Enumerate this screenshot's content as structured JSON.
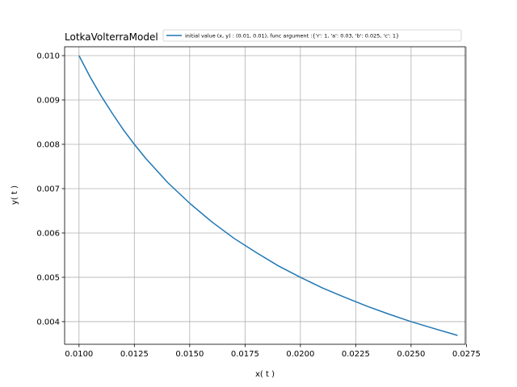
{
  "chart_data": {
    "type": "line",
    "title": "LotkaVolterraModel",
    "xlabel": "x( t )",
    "ylabel": "y( t )",
    "xlim": [
      0.00935,
      0.02745
    ],
    "ylim": [
      0.00349,
      0.0102
    ],
    "xticks": [
      "0.0100",
      "0.0125",
      "0.0150",
      "0.0175",
      "0.0200",
      "0.0225",
      "0.0250",
      "0.0275"
    ],
    "yticks": [
      "0.004",
      "0.005",
      "0.006",
      "0.007",
      "0.008",
      "0.009",
      "0.010"
    ],
    "grid": true,
    "legend_position": "top-right",
    "series": [
      {
        "name": "initial value (x, y) : (0.01, 0.01), func argument :{'r': 1, 'a': 0.03, 'b': 0.025, 'c': 1}",
        "color": "#1f77b4",
        "x": [
          0.01,
          0.0105,
          0.011,
          0.0115,
          0.012,
          0.0125,
          0.013,
          0.014,
          0.015,
          0.016,
          0.017,
          0.018,
          0.019,
          0.02,
          0.021,
          0.022,
          0.023,
          0.024,
          0.025,
          0.026,
          0.0271
        ],
        "y": [
          0.01,
          0.00952,
          0.00909,
          0.0087,
          0.00833,
          0.008,
          0.00769,
          0.00714,
          0.00667,
          0.00625,
          0.00588,
          0.00556,
          0.00526,
          0.005,
          0.00476,
          0.00455,
          0.00435,
          0.00417,
          0.004,
          0.00385,
          0.00369
        ]
      }
    ]
  }
}
